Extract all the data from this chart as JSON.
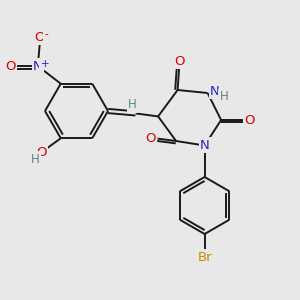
{
  "bg_color": "#e8e8e8",
  "bond_color": "#1a1a1a",
  "bond_width": 1.4,
  "colors": {
    "N": "#2222cc",
    "O": "#dd0000",
    "H": "#558888",
    "Br": "#cc8800"
  },
  "fs": 8.5
}
